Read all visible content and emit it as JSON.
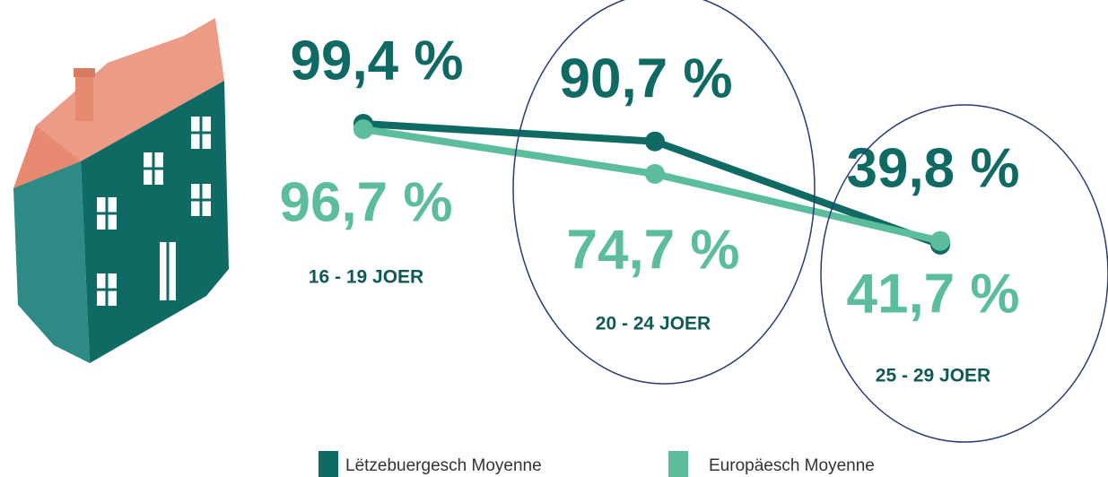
{
  "chart_data": {
    "type": "line",
    "categories": [
      "16 - 19 JOER",
      "20 - 24 JOER",
      "25 - 29 JOER"
    ],
    "series": [
      {
        "name": "Lëtzebuergesch Moyenne",
        "color": "#0f6a63",
        "values": [
          99.4,
          90.7,
          39.8
        ],
        "value_labels": [
          "99,4 %",
          "90,7 %",
          "39,8 %"
        ]
      },
      {
        "name": "Europäesch Moyenne",
        "color": "#5bbd9c",
        "values": [
          96.7,
          74.7,
          41.7
        ],
        "value_labels": [
          "96,7 %",
          "74,7 %",
          "41,7 %"
        ]
      }
    ]
  }
}
